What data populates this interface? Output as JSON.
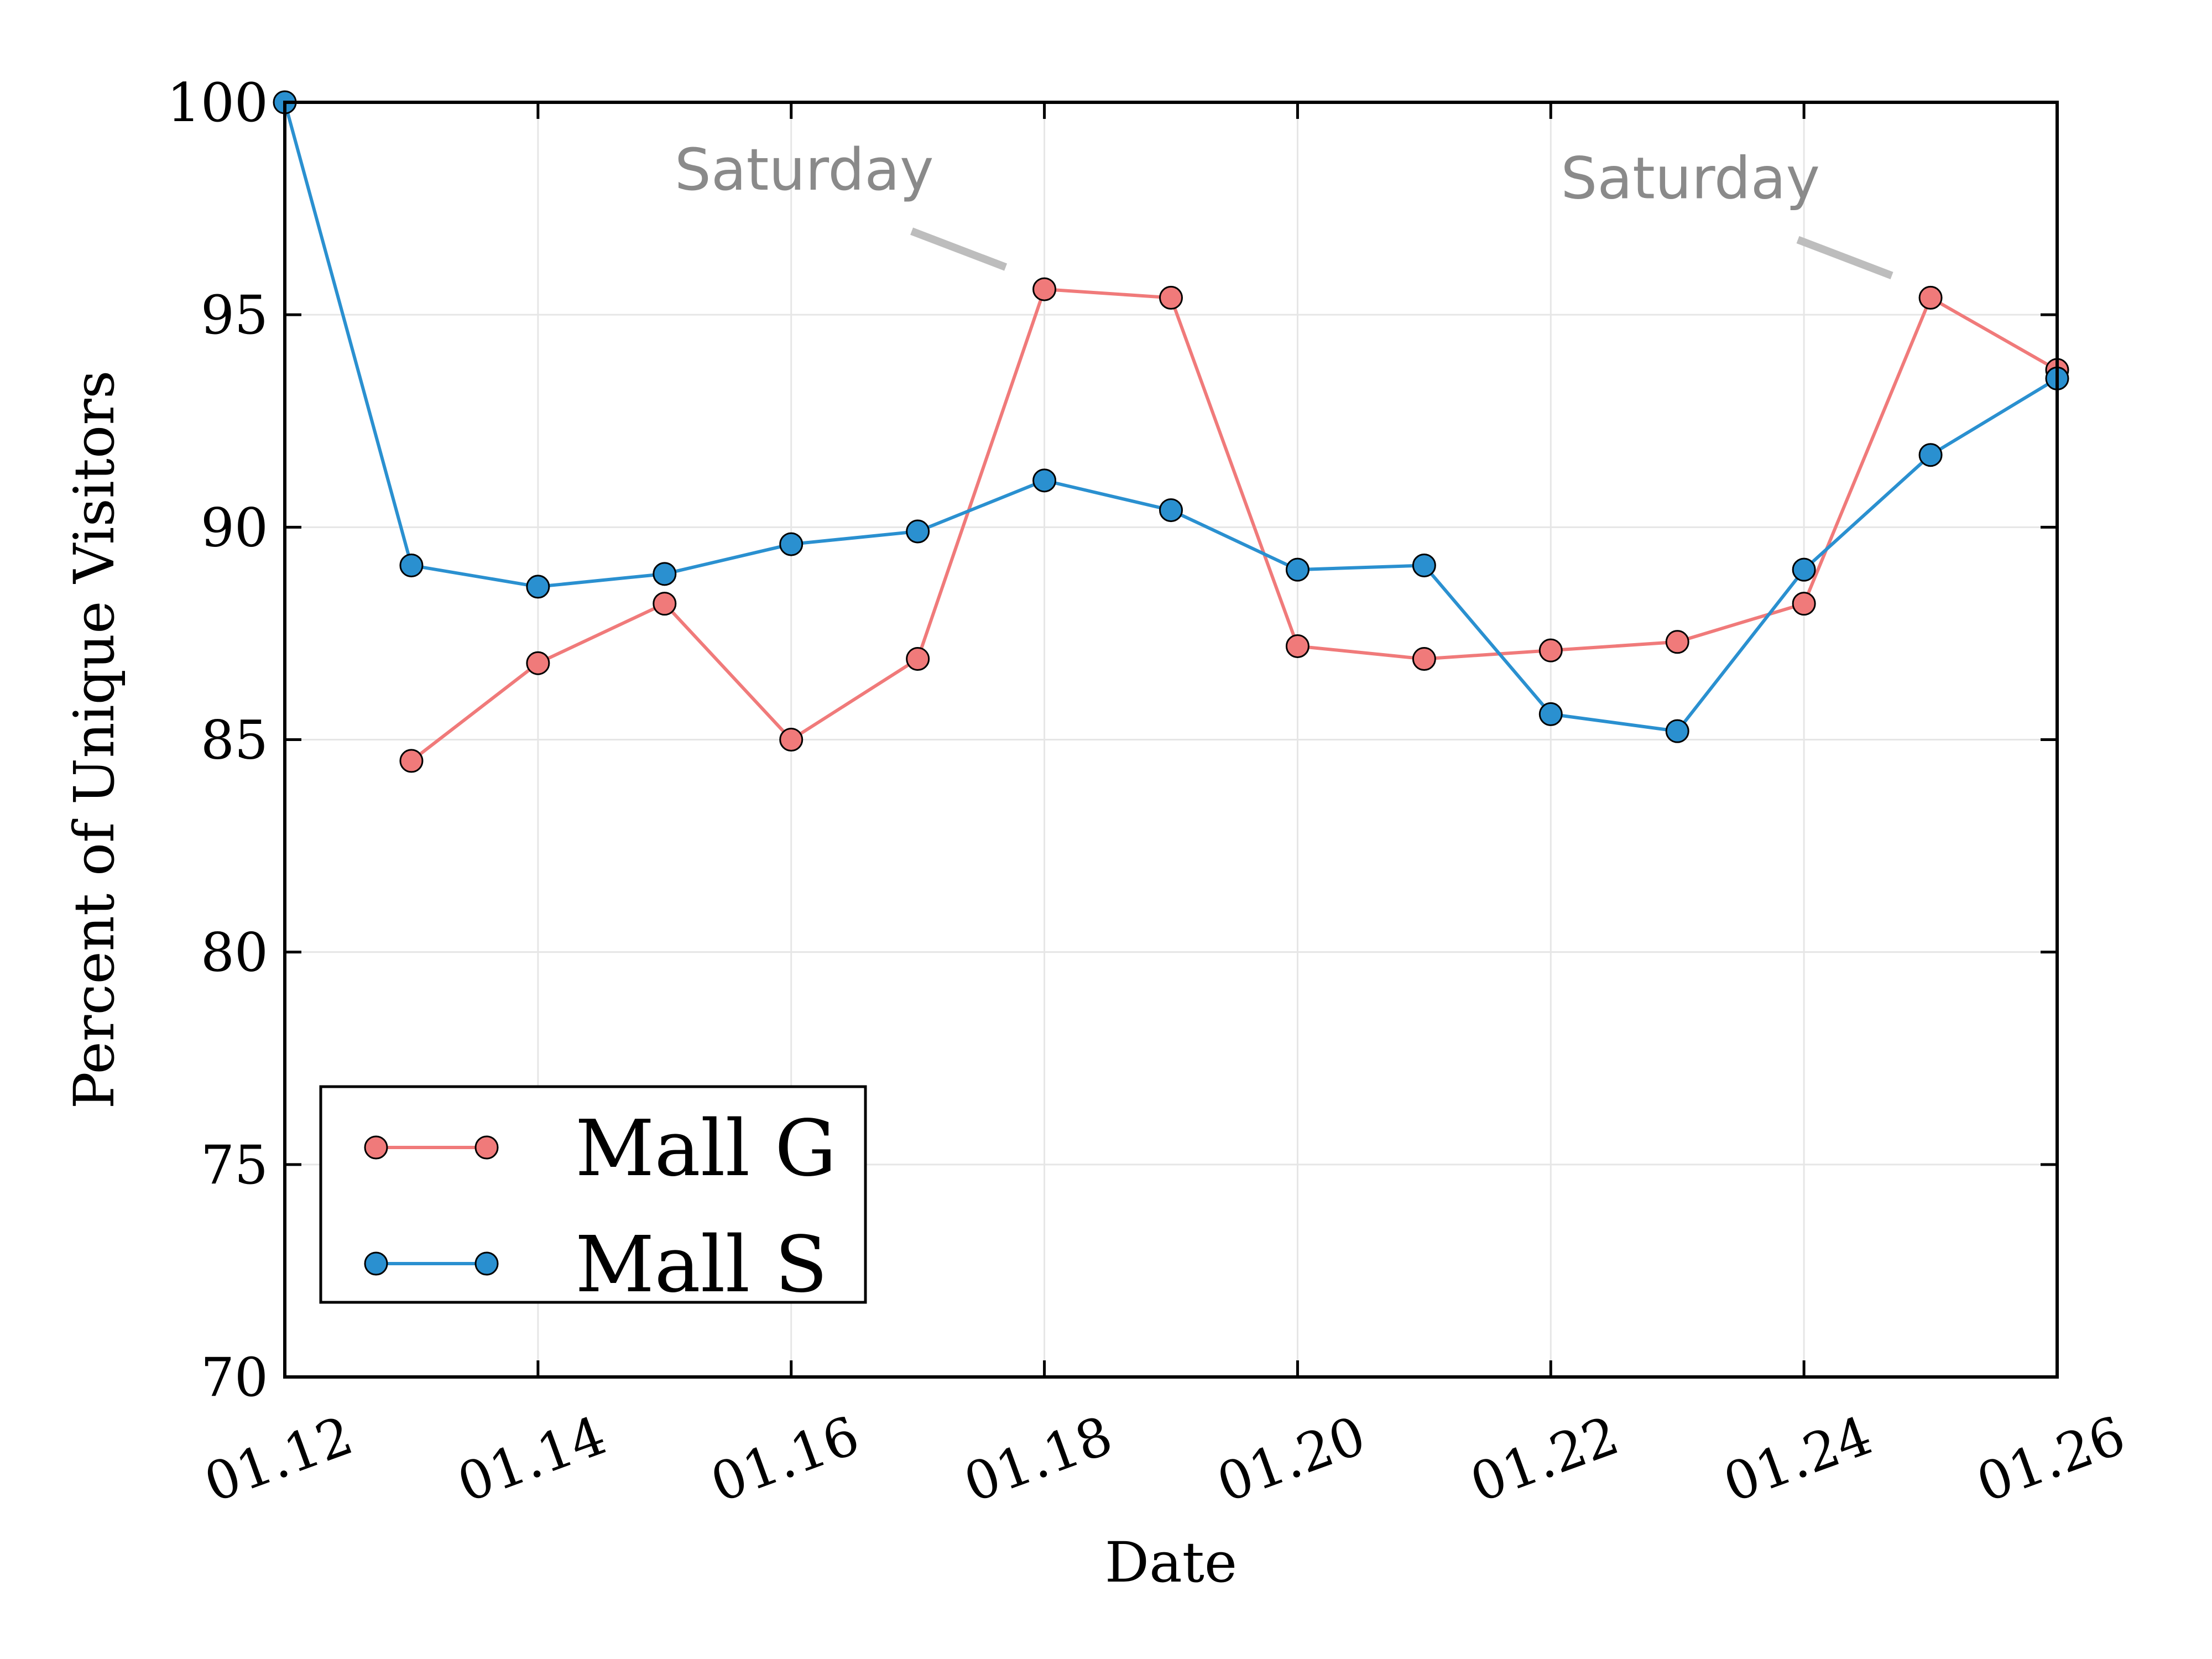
{
  "chart_data": {
    "type": "line",
    "title": "",
    "xlabel": "Date",
    "ylabel": "Percent of Unique Visitors",
    "x_tick_labels": [
      "01.12",
      "01.14",
      "01.16",
      "01.18",
      "01.20",
      "01.22",
      "01.24",
      "01.26"
    ],
    "x_tick_days": [
      12,
      14,
      16,
      18,
      20,
      22,
      24,
      26
    ],
    "xlim": [
      12,
      26
    ],
    "ylim": [
      70,
      100
    ],
    "y_ticks": [
      70,
      75,
      80,
      85,
      90,
      95,
      100
    ],
    "grid": true,
    "legend_position": "bottom-left",
    "series": [
      {
        "name": "Mall G",
        "color": "#f07a7a",
        "x": [
          13,
          14,
          15,
          16,
          17,
          18,
          19,
          20,
          21,
          22,
          23,
          24,
          25,
          26
        ],
        "values": [
          84.5,
          86.8,
          88.2,
          85.0,
          86.9,
          95.6,
          95.4,
          87.2,
          86.9,
          87.1,
          87.3,
          88.2,
          95.4,
          93.7
        ]
      },
      {
        "name": "Mall S",
        "color": "#2a90d0",
        "x": [
          12,
          13,
          14,
          15,
          16,
          17,
          18,
          19,
          20,
          21,
          22,
          23,
          24,
          25,
          26
        ],
        "values": [
          100.0,
          89.1,
          88.6,
          88.9,
          89.6,
          89.9,
          91.1,
          90.4,
          89.0,
          89.1,
          85.6,
          85.2,
          89.0,
          91.7,
          93.5
        ]
      }
    ],
    "annotations": [
      {
        "text": "Saturday",
        "target_x": 18,
        "target_y": 95.6
      },
      {
        "text": "Saturday",
        "target_x": 25,
        "target_y": 95.4
      }
    ]
  }
}
